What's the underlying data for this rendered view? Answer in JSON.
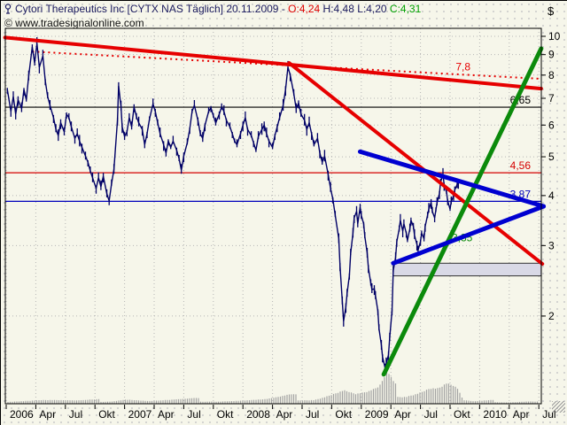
{
  "title_bar": {
    "icon": "chart-pin-icon",
    "instrument": "Cytori Therapeutics Inc [CYTX NAS  Täglich] 20.11.2009 - ",
    "open": "O:4,24",
    "high_low": " H:4,48 L:4,20 ",
    "close": "C:4,31"
  },
  "copyright": "© www.tradesignalonline.com",
  "axis": {
    "currency_symbol": "$",
    "price_ticks": [
      10,
      9,
      8,
      7,
      6,
      5,
      4,
      3,
      2
    ],
    "time_ticks": [
      "2006",
      "Apr",
      "Jul",
      "Okt",
      "2007",
      "Apr",
      "Jul",
      "Okt",
      "2008",
      "Apr",
      "Jul",
      "Okt",
      "2009",
      "Apr",
      "Jul",
      "Okt",
      "2010",
      "Apr",
      "Jul"
    ]
  },
  "colors": {
    "background": "#f6f6ea",
    "grid": "#b5b5b5",
    "candle": "#000066",
    "red": "#e60000",
    "thin_red": "#d40000",
    "green": "#0b8a0b",
    "blue_thick": "#0000d0",
    "thin_blue": "#0000bb",
    "black": "#000000",
    "box_fill": "#d9d9e6",
    "volume": "#a3a3a3"
  },
  "chart_data": {
    "type": "candlestick",
    "title": "Cytori Therapeutics Inc [CYTX NAS Täglich] 20.11.2009",
    "ohlc_last": {
      "open": 4.24,
      "high": 4.48,
      "low": 4.2,
      "close": 4.31
    },
    "x_axis": {
      "start": 2006.0,
      "end": 2010.54,
      "tick_interval_months": 3,
      "tick_labels": [
        "2006",
        "Apr",
        "Jul",
        "Okt",
        "2007",
        "Apr",
        "Jul",
        "Okt",
        "2008",
        "Apr",
        "Jul",
        "Okt",
        "2009",
        "Apr",
        "Jul",
        "Okt",
        "2010",
        "Apr",
        "Jul"
      ]
    },
    "y_axis": {
      "scale": "log",
      "min": 1.21,
      "max": 10.48,
      "unit": "$",
      "ticks": [
        10,
        9,
        8,
        7,
        6,
        5,
        4,
        3,
        2
      ]
    },
    "grid": "dotted",
    "price_points": [
      [
        2006.01,
        7.36
      ],
      [
        2006.04,
        6.49
      ],
      [
        2006.06,
        7.07
      ],
      [
        2006.08,
        6.39
      ],
      [
        2006.1,
        6.94
      ],
      [
        2006.13,
        6.6
      ],
      [
        2006.15,
        7.36
      ],
      [
        2006.17,
        6.94
      ],
      [
        2006.19,
        7.96
      ],
      [
        2006.22,
        9.4
      ],
      [
        2006.24,
        8.58
      ],
      [
        2006.26,
        9.6
      ],
      [
        2006.28,
        8.37
      ],
      [
        2006.31,
        8.93
      ],
      [
        2006.33,
        7.74
      ],
      [
        2006.35,
        7.07
      ],
      [
        2006.37,
        6.72
      ],
      [
        2006.4,
        6.26
      ],
      [
        2006.42,
        5.85
      ],
      [
        2006.44,
        5.65
      ],
      [
        2006.46,
        6.08
      ],
      [
        2006.49,
        5.77
      ],
      [
        2006.51,
        6.39
      ],
      [
        2006.53,
        6.26
      ],
      [
        2006.55,
        5.94
      ],
      [
        2006.58,
        5.56
      ],
      [
        2006.6,
        5.71
      ],
      [
        2006.62,
        5.47
      ],
      [
        2006.64,
        5.28
      ],
      [
        2006.67,
        5.02
      ],
      [
        2006.69,
        4.85
      ],
      [
        2006.71,
        4.61
      ],
      [
        2006.73,
        4.43
      ],
      [
        2006.76,
        4.17
      ],
      [
        2006.78,
        4.43
      ],
      [
        2006.8,
        4.21
      ],
      [
        2006.82,
        4.47
      ],
      [
        2006.85,
        4.04
      ],
      [
        2006.87,
        3.88
      ],
      [
        2006.89,
        4.28
      ],
      [
        2006.91,
        4.65
      ],
      [
        2006.94,
        6.17
      ],
      [
        2006.95,
        7.52
      ],
      [
        2006.97,
        6.66
      ],
      [
        2006.98,
        5.94
      ],
      [
        2007.0,
        5.62
      ],
      [
        2007.02,
        5.77
      ],
      [
        2007.04,
        6.26
      ],
      [
        2007.06,
        5.94
      ],
      [
        2007.08,
        6.66
      ],
      [
        2007.1,
        6.3
      ],
      [
        2007.12,
        6.08
      ],
      [
        2007.15,
        5.85
      ],
      [
        2007.17,
        5.36
      ],
      [
        2007.19,
        5.71
      ],
      [
        2007.21,
        6.21
      ],
      [
        2007.24,
        6.78
      ],
      [
        2007.26,
        6.49
      ],
      [
        2007.28,
        6.08
      ],
      [
        2007.3,
        5.71
      ],
      [
        2007.33,
        5.36
      ],
      [
        2007.35,
        5.11
      ],
      [
        2007.37,
        5.47
      ],
      [
        2007.39,
        5.28
      ],
      [
        2007.41,
        5.47
      ],
      [
        2007.44,
        5.19
      ],
      [
        2007.46,
        4.95
      ],
      [
        2007.48,
        4.63
      ],
      [
        2007.5,
        5.02
      ],
      [
        2007.53,
        5.42
      ],
      [
        2007.55,
        5.85
      ],
      [
        2007.57,
        6.49
      ],
      [
        2007.59,
        6.72
      ],
      [
        2007.62,
        6.17
      ],
      [
        2007.64,
        5.71
      ],
      [
        2007.66,
        5.56
      ],
      [
        2007.68,
        6.0
      ],
      [
        2007.71,
        6.49
      ],
      [
        2007.73,
        6.63
      ],
      [
        2007.75,
        6.33
      ],
      [
        2007.77,
        6.08
      ],
      [
        2007.8,
        6.39
      ],
      [
        2007.82,
        6.66
      ],
      [
        2007.84,
        6.49
      ],
      [
        2007.86,
        6.17
      ],
      [
        2007.89,
        5.94
      ],
      [
        2007.91,
        5.71
      ],
      [
        2007.93,
        5.47
      ],
      [
        2007.95,
        5.36
      ],
      [
        2007.98,
        5.71
      ],
      [
        2008.0,
        6.0
      ],
      [
        2008.02,
        6.26
      ],
      [
        2008.04,
        5.85
      ],
      [
        2008.07,
        5.65
      ],
      [
        2008.09,
        5.42
      ],
      [
        2008.11,
        5.19
      ],
      [
        2008.13,
        5.62
      ],
      [
        2008.16,
        5.85
      ],
      [
        2008.18,
        6.0
      ],
      [
        2008.2,
        5.71
      ],
      [
        2008.22,
        5.47
      ],
      [
        2008.25,
        5.28
      ],
      [
        2008.27,
        5.65
      ],
      [
        2008.29,
        5.94
      ],
      [
        2008.31,
        6.26
      ],
      [
        2008.34,
        6.72
      ],
      [
        2008.36,
        7.36
      ],
      [
        2008.38,
        8.37
      ],
      [
        2008.4,
        8.0
      ],
      [
        2008.43,
        7.19
      ],
      [
        2008.45,
        6.6
      ],
      [
        2008.47,
        6.81
      ],
      [
        2008.49,
        6.39
      ],
      [
        2008.52,
        6.17
      ],
      [
        2008.54,
        5.85
      ],
      [
        2008.56,
        6.08
      ],
      [
        2008.58,
        5.71
      ],
      [
        2008.6,
        5.36
      ],
      [
        2008.63,
        5.56
      ],
      [
        2008.65,
        5.11
      ],
      [
        2008.67,
        4.85
      ],
      [
        2008.69,
        5.02
      ],
      [
        2008.72,
        4.52
      ],
      [
        2008.74,
        4.17
      ],
      [
        2008.76,
        3.92
      ],
      [
        2008.78,
        3.57
      ],
      [
        2008.81,
        3.12
      ],
      [
        2008.82,
        2.67
      ],
      [
        2008.84,
        2.17
      ],
      [
        2008.85,
        1.94
      ],
      [
        2008.87,
        2.11
      ],
      [
        2008.88,
        2.28
      ],
      [
        2008.9,
        2.53
      ],
      [
        2008.91,
        2.87
      ],
      [
        2008.93,
        3.22
      ],
      [
        2008.94,
        3.52
      ],
      [
        2008.96,
        3.65
      ],
      [
        2008.97,
        3.4
      ],
      [
        2008.99,
        3.74
      ],
      [
        2009.0,
        3.57
      ],
      [
        2009.02,
        3.4
      ],
      [
        2009.03,
        3.16
      ],
      [
        2009.05,
        2.87
      ],
      [
        2009.06,
        2.64
      ],
      [
        2009.08,
        2.42
      ],
      [
        2009.09,
        2.33
      ],
      [
        2009.11,
        2.34
      ],
      [
        2009.12,
        2.25
      ],
      [
        2009.14,
        2.06
      ],
      [
        2009.15,
        1.86
      ],
      [
        2009.17,
        1.69
      ],
      [
        2009.18,
        1.58
      ],
      [
        2009.2,
        1.49
      ],
      [
        2009.21,
        1.52
      ],
      [
        2009.23,
        1.6
      ],
      [
        2009.24,
        1.77
      ],
      [
        2009.26,
        2.06
      ],
      [
        2009.27,
        2.6
      ],
      [
        2009.29,
        2.8
      ],
      [
        2009.3,
        3.07
      ],
      [
        2009.32,
        3.3
      ],
      [
        2009.33,
        3.47
      ],
      [
        2009.35,
        3.26
      ],
      [
        2009.36,
        3.4
      ],
      [
        2009.38,
        3.22
      ],
      [
        2009.39,
        3.09
      ],
      [
        2009.41,
        3.3
      ],
      [
        2009.42,
        3.47
      ],
      [
        2009.44,
        3.35
      ],
      [
        2009.45,
        3.18
      ],
      [
        2009.47,
        3.02
      ],
      [
        2009.48,
        2.92
      ],
      [
        2009.5,
        3.07
      ],
      [
        2009.51,
        3.22
      ],
      [
        2009.53,
        3.12
      ],
      [
        2009.54,
        3.35
      ],
      [
        2009.56,
        3.57
      ],
      [
        2009.57,
        3.7
      ],
      [
        2009.59,
        3.84
      ],
      [
        2009.6,
        3.65
      ],
      [
        2009.62,
        3.52
      ],
      [
        2009.63,
        3.68
      ],
      [
        2009.64,
        3.84
      ],
      [
        2009.66,
        4.04
      ],
      [
        2009.67,
        4.32
      ],
      [
        2009.69,
        4.52
      ],
      [
        2009.7,
        4.26
      ],
      [
        2009.72,
        4.08
      ],
      [
        2009.73,
        3.88
      ],
      [
        2009.75,
        3.7
      ],
      [
        2009.76,
        3.86
      ],
      [
        2009.78,
        4.0
      ],
      [
        2009.79,
        4.13
      ],
      [
        2009.81,
        4.26
      ],
      [
        2009.82,
        4.31
      ]
    ],
    "volume_relative": [
      [
        2006.0,
        0.12
      ],
      [
        2006.3,
        0.16
      ],
      [
        2006.6,
        0.1
      ],
      [
        2006.9,
        0.14
      ],
      [
        2007.0,
        0.22
      ],
      [
        2007.2,
        0.1
      ],
      [
        2007.4,
        0.13
      ],
      [
        2007.6,
        0.16
      ],
      [
        2007.8,
        0.11
      ],
      [
        2008.0,
        0.13
      ],
      [
        2008.2,
        0.16
      ],
      [
        2008.4,
        0.28
      ],
      [
        2008.6,
        0.22
      ],
      [
        2008.78,
        0.5
      ],
      [
        2008.85,
        0.6
      ],
      [
        2008.95,
        0.38
      ],
      [
        2009.05,
        0.42
      ],
      [
        2009.15,
        0.55
      ],
      [
        2009.22,
        1.0
      ],
      [
        2009.28,
        0.6
      ],
      [
        2009.38,
        0.5
      ],
      [
        2009.48,
        0.62
      ],
      [
        2009.58,
        0.8
      ],
      [
        2009.65,
        0.72
      ],
      [
        2009.72,
        0.88
      ],
      [
        2009.78,
        0.72
      ],
      [
        2009.82,
        0.55
      ],
      [
        2009.86,
        0.12
      ],
      [
        2009.95,
        0.07
      ],
      [
        2010.1,
        0.1
      ],
      [
        2010.25,
        0.06
      ],
      [
        2010.4,
        0.1
      ],
      [
        2010.5,
        0.08
      ]
    ],
    "levels": [
      {
        "price": 6.65,
        "label": "6,65",
        "color": "#000000",
        "style": "solid"
      },
      {
        "price": 4.56,
        "label": "4,56",
        "color": "#d40000",
        "style": "solid"
      },
      {
        "price": 3.87,
        "label": "3,87",
        "color": "#0000bb",
        "style": "solid"
      }
    ],
    "trendlines": [
      {
        "name": "downtrend-major",
        "color": "#e60000",
        "width": 4,
        "style": "solid",
        "from": [
          2005.99,
          9.93
        ],
        "to": [
          2010.52,
          7.4
        ]
      },
      {
        "name": "downtrend-dotted",
        "color": "#e60000",
        "width": 2,
        "style": "dotted",
        "from": [
          2006.22,
          9.16
        ],
        "to": [
          2010.52,
          7.83
        ],
        "label": "7,8"
      },
      {
        "name": "downtrend-steep",
        "color": "#e60000",
        "width": 4,
        "style": "solid",
        "from": [
          2008.39,
          8.58
        ],
        "to": [
          2010.53,
          2.7
        ]
      },
      {
        "name": "uptrend-green",
        "color": "#0b8a0b",
        "width": 5,
        "style": "solid",
        "from": [
          2009.19,
          1.43
        ],
        "to": [
          2010.52,
          9.32
        ]
      },
      {
        "name": "triangle-upper",
        "color": "#0000d0",
        "width": 5,
        "style": "solid",
        "from": [
          2008.99,
          5.15
        ],
        "to": [
          2010.54,
          3.76
        ]
      },
      {
        "name": "triangle-lower",
        "color": "#0000d0",
        "width": 5,
        "style": "solid",
        "from": [
          2009.27,
          2.71
        ],
        "to": [
          2010.54,
          3.76
        ]
      }
    ],
    "support_box": {
      "from_year": 2009.27,
      "to_year": 2010.52,
      "price_top": 2.71,
      "price_bottom": 2.52,
      "fill": "#d9d9e6"
    },
    "annotations": [
      {
        "text": "3,35",
        "color": "#0b8a0b",
        "year": 2009.72,
        "price": 3.3
      }
    ]
  }
}
